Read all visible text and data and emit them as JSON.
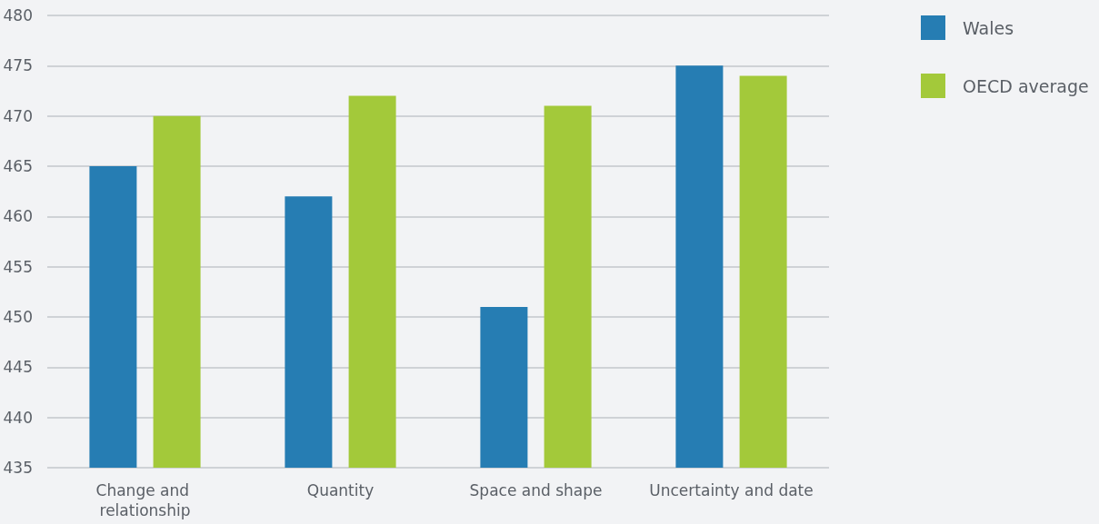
{
  "chart_data": {
    "type": "bar",
    "categories": [
      "Change and relationship",
      "Quantity",
      "Space and shape",
      "Uncertainty and date"
    ],
    "series": [
      {
        "name": "Wales",
        "color": "#267db3",
        "values": [
          465,
          462,
          451,
          475
        ]
      },
      {
        "name": "OECD average",
        "color": "#a3c93a",
        "values": [
          470,
          472,
          471,
          474
        ]
      }
    ],
    "ylim": [
      435,
      480
    ],
    "yticks": [
      435,
      440,
      445,
      450,
      455,
      460,
      465,
      470,
      475,
      480
    ],
    "grid": "y",
    "legend": "top right"
  }
}
